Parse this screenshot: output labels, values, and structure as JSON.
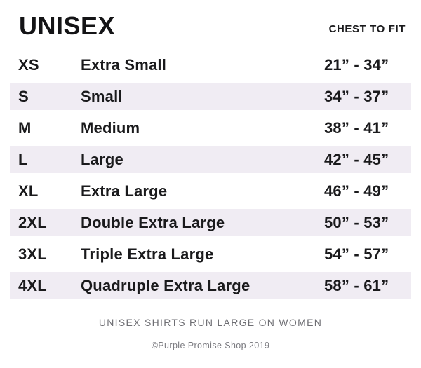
{
  "header": {
    "title": "UNISEX",
    "chest_column_label": "CHEST TO FIT"
  },
  "chart_data": {
    "type": "table",
    "title": "UNISEX",
    "columns": [
      "size_code",
      "size_name",
      "chest_to_fit"
    ],
    "rows": [
      {
        "code": "XS",
        "name": "Extra Small",
        "range": "21” - 34”"
      },
      {
        "code": "S",
        "name": "Small",
        "range": "34” - 37”"
      },
      {
        "code": "M",
        "name": "Medium",
        "range": "38” - 41”"
      },
      {
        "code": "L",
        "name": "Large",
        "range": "42” - 45”"
      },
      {
        "code": "XL",
        "name": "Extra Large",
        "range": "46” - 49”"
      },
      {
        "code": "2XL",
        "name": "Double Extra Large",
        "range": "50” - 53”"
      },
      {
        "code": "3XL",
        "name": "Triple Extra Large",
        "range": "54” - 57”"
      },
      {
        "code": "4XL",
        "name": "Quadruple Extra Large",
        "range": "58” - 61”"
      }
    ],
    "layout": {
      "striped": true,
      "stripe_rows": "even (S, L, 2XL, 4XL)"
    }
  },
  "footer": {
    "note": "UNISEX SHIRTS RUN LARGE ON WOMEN",
    "copyright": "©Purple Promise Shop 2019"
  },
  "colors": {
    "row_stripe": "#f0ecf3",
    "text": "#1a1a1c",
    "muted_text": "#6e6e73",
    "background": "#ffffff"
  }
}
